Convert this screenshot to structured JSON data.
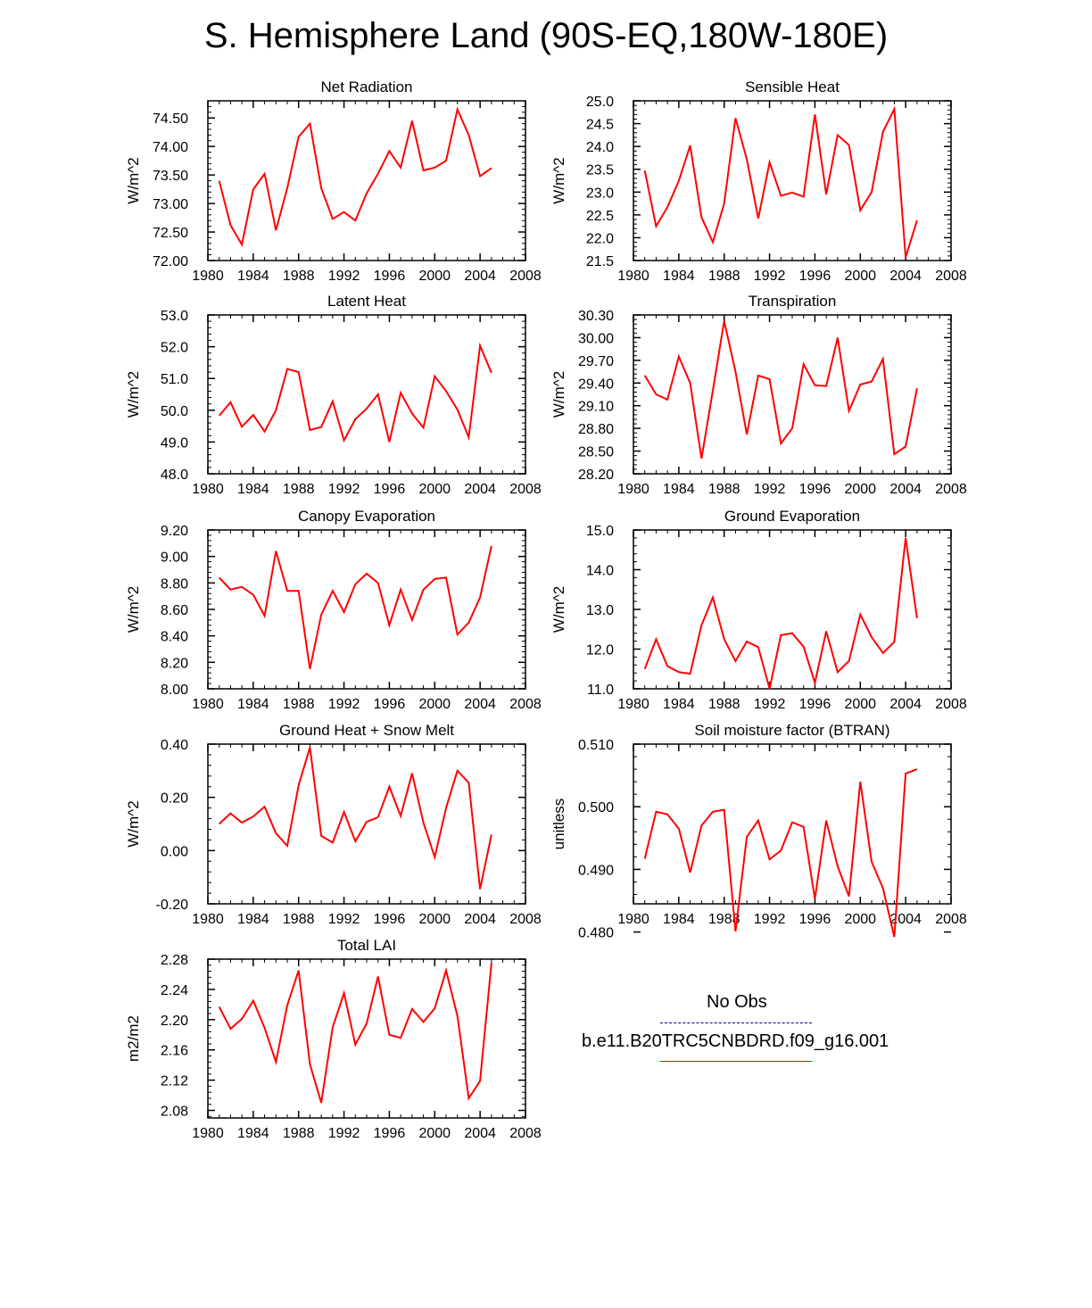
{
  "title": "S. Hemisphere Land (90S-EQ,180W-180E)",
  "colors": {
    "model": "#ff0000",
    "obs": "#00008b",
    "axis": "#000000"
  },
  "legend": {
    "obs_label": "No Obs",
    "model_label": "b.e11.B20TRC5CNBDRD.f09_g16.001"
  },
  "chart_data": [
    {
      "type": "line",
      "title": "Net Radiation",
      "xlabel": "",
      "ylabel": "W/m^2",
      "xlim": [
        1980,
        2008
      ],
      "ylim": [
        72.0,
        74.8
      ],
      "xticks": [
        "1980",
        "1984",
        "1988",
        "1992",
        "1996",
        "2000",
        "2004",
        "2008"
      ],
      "yticks": [
        "72.00",
        "72.50",
        "73.00",
        "73.50",
        "74.00",
        "74.50"
      ],
      "x": [
        1981,
        1982,
        1983,
        1984,
        1985,
        1986,
        1987,
        1988,
        1989,
        1990,
        1991,
        1992,
        1993,
        1994,
        1995,
        1996,
        1997,
        1998,
        1999,
        2000,
        2001,
        2002,
        2003,
        2004,
        2005
      ],
      "series": [
        {
          "name": "b.e11.B20TRC5CNBDRD.f09_g16.001",
          "values": [
            73.4,
            72.62,
            72.28,
            73.25,
            73.52,
            72.53,
            73.27,
            74.17,
            74.4,
            73.27,
            72.73,
            72.85,
            72.7,
            73.18,
            73.52,
            73.92,
            73.63,
            74.45,
            73.58,
            73.63,
            73.75,
            74.65,
            74.2,
            73.48,
            73.62
          ]
        }
      ]
    },
    {
      "type": "line",
      "title": "Sensible Heat",
      "xlabel": "",
      "ylabel": "W/m^2",
      "xlim": [
        1980,
        2008
      ],
      "ylim": [
        21.5,
        25.0
      ],
      "xticks": [
        "1980",
        "1984",
        "1988",
        "1992",
        "1996",
        "2000",
        "2004",
        "2008"
      ],
      "yticks": [
        "21.5",
        "22.0",
        "22.5",
        "23.0",
        "23.5",
        "24.0",
        "24.5",
        "25.0"
      ],
      "x": [
        1981,
        1982,
        1983,
        1984,
        1985,
        1986,
        1987,
        1988,
        1989,
        1990,
        1991,
        1992,
        1993,
        1994,
        1995,
        1996,
        1997,
        1998,
        1999,
        2000,
        2001,
        2002,
        2003,
        2004,
        2005
      ],
      "series": [
        {
          "name": "b.e11.B20TRC5CNBDRD.f09_g16.001",
          "values": [
            23.47,
            22.25,
            22.67,
            23.25,
            24.02,
            22.45,
            21.9,
            22.75,
            24.62,
            23.72,
            22.42,
            23.65,
            22.92,
            22.99,
            22.9,
            24.7,
            22.95,
            24.25,
            24.03,
            22.6,
            23.0,
            24.32,
            24.82,
            21.57,
            22.38
          ]
        }
      ]
    },
    {
      "type": "line",
      "title": "Latent Heat",
      "xlabel": "",
      "ylabel": "W/m^2",
      "xlim": [
        1980,
        2008
      ],
      "ylim": [
        48.0,
        53.0
      ],
      "xticks": [
        "1980",
        "1984",
        "1988",
        "1992",
        "1996",
        "2000",
        "2004",
        "2008"
      ],
      "yticks": [
        "48.0",
        "49.0",
        "50.0",
        "51.0",
        "52.0",
        "53.0"
      ],
      "x": [
        1981,
        1982,
        1983,
        1984,
        1985,
        1986,
        1987,
        1988,
        1989,
        1990,
        1991,
        1992,
        1993,
        1994,
        1995,
        1996,
        1997,
        1998,
        1999,
        2000,
        2001,
        2002,
        2003,
        2004,
        2005
      ],
      "series": [
        {
          "name": "b.e11.B20TRC5CNBDRD.f09_g16.001",
          "values": [
            49.83,
            50.25,
            49.48,
            49.85,
            49.33,
            50.0,
            51.3,
            51.2,
            49.38,
            49.47,
            50.28,
            49.05,
            49.72,
            50.05,
            50.5,
            49.0,
            50.55,
            49.9,
            49.45,
            51.07,
            50.6,
            50.02,
            49.15,
            52.03,
            51.18
          ]
        }
      ]
    },
    {
      "type": "line",
      "title": "Transpiration",
      "xlabel": "",
      "ylabel": "W/m^2",
      "xlim": [
        1980,
        2008
      ],
      "ylim": [
        28.2,
        30.3
      ],
      "xticks": [
        "1980",
        "1984",
        "1988",
        "1992",
        "1996",
        "2000",
        "2004",
        "2008"
      ],
      "yticks": [
        "28.20",
        "28.50",
        "28.80",
        "29.10",
        "29.40",
        "29.70",
        "30.00",
        "30.30"
      ],
      "x": [
        1981,
        1982,
        1983,
        1984,
        1985,
        1986,
        1987,
        1988,
        1989,
        1990,
        1991,
        1992,
        1993,
        1994,
        1995,
        1996,
        1997,
        1998,
        1999,
        2000,
        2001,
        2002,
        2003,
        2004,
        2005
      ],
      "series": [
        {
          "name": "b.e11.B20TRC5CNBDRD.f09_g16.001",
          "values": [
            29.5,
            29.25,
            29.18,
            29.75,
            29.4,
            28.4,
            29.3,
            30.22,
            29.55,
            28.72,
            29.5,
            29.45,
            28.6,
            28.8,
            29.65,
            29.37,
            29.36,
            30.0,
            29.03,
            29.38,
            29.42,
            29.72,
            28.46,
            28.56,
            29.33
          ]
        }
      ]
    },
    {
      "type": "line",
      "title": "Canopy Evaporation",
      "xlabel": "",
      "ylabel": "W/m^2",
      "xlim": [
        1980,
        2008
      ],
      "ylim": [
        8.0,
        9.2
      ],
      "xticks": [
        "1980",
        "1984",
        "1988",
        "1992",
        "1996",
        "2000",
        "2004",
        "2008"
      ],
      "yticks": [
        "8.00",
        "8.20",
        "8.40",
        "8.60",
        "8.80",
        "9.00",
        "9.20"
      ],
      "x": [
        1981,
        1982,
        1983,
        1984,
        1985,
        1986,
        1987,
        1988,
        1989,
        1990,
        1991,
        1992,
        1993,
        1994,
        1995,
        1996,
        1997,
        1998,
        1999,
        2000,
        2001,
        2002,
        2003,
        2004,
        2005
      ],
      "series": [
        {
          "name": "b.e11.B20TRC5CNBDRD.f09_g16.001",
          "values": [
            8.84,
            8.75,
            8.77,
            8.71,
            8.55,
            9.04,
            8.74,
            8.74,
            8.15,
            8.56,
            8.74,
            8.58,
            8.79,
            8.87,
            8.8,
            8.48,
            8.75,
            8.52,
            8.75,
            8.83,
            8.84,
            8.41,
            8.5,
            8.69,
            9.08
          ]
        }
      ]
    },
    {
      "type": "line",
      "title": "Ground Evaporation",
      "xlabel": "",
      "ylabel": "W/m^2",
      "xlim": [
        1980,
        2008
      ],
      "ylim": [
        11.0,
        15.0
      ],
      "xticks": [
        "1980",
        "1984",
        "1988",
        "1992",
        "1996",
        "2000",
        "2004",
        "2008"
      ],
      "yticks": [
        "11.0",
        "12.0",
        "13.0",
        "14.0",
        "15.0"
      ],
      "x": [
        1981,
        1982,
        1983,
        1984,
        1985,
        1986,
        1987,
        1988,
        1989,
        1990,
        1991,
        1992,
        1993,
        1994,
        1995,
        1996,
        1997,
        1998,
        1999,
        2000,
        2001,
        2002,
        2003,
        2004,
        2005
      ],
      "series": [
        {
          "name": "b.e11.B20TRC5CNBDRD.f09_g16.001",
          "values": [
            11.5,
            12.25,
            11.57,
            11.42,
            11.38,
            12.6,
            13.3,
            12.25,
            11.7,
            12.19,
            12.05,
            11.0,
            12.35,
            12.4,
            12.06,
            11.15,
            12.45,
            11.42,
            11.7,
            12.87,
            12.3,
            11.9,
            12.18,
            14.8,
            12.78
          ]
        }
      ]
    },
    {
      "type": "line",
      "title": "Ground Heat + Snow Melt",
      "xlabel": "",
      "ylabel": "W/m^2",
      "xlim": [
        1980,
        2008
      ],
      "ylim": [
        -0.2,
        0.4
      ],
      "xticks": [
        "1980",
        "1984",
        "1988",
        "1992",
        "1996",
        "2000",
        "2004",
        "2008"
      ],
      "yticks": [
        "-0.20",
        "0.00",
        "0.20",
        "0.40"
      ],
      "x": [
        1981,
        1982,
        1983,
        1984,
        1985,
        1986,
        1987,
        1988,
        1989,
        1990,
        1991,
        1992,
        1993,
        1994,
        1995,
        1996,
        1997,
        1998,
        1999,
        2000,
        2001,
        2002,
        2003,
        2004,
        2005
      ],
      "series": [
        {
          "name": "b.e11.B20TRC5CNBDRD.f09_g16.001",
          "values": [
            0.1,
            0.14,
            0.105,
            0.128,
            0.165,
            0.065,
            0.018,
            0.245,
            0.388,
            0.055,
            0.03,
            0.145,
            0.035,
            0.108,
            0.125,
            0.24,
            0.13,
            0.29,
            0.105,
            -0.025,
            0.16,
            0.3,
            0.255,
            -0.145,
            0.06
          ]
        }
      ]
    },
    {
      "type": "line",
      "title": "Soil moisture factor (BTRAN)",
      "xlabel": "",
      "ylabel": "unitless",
      "xlim": [
        1980,
        2008
      ],
      "ylim": [
        0.4845,
        0.51
      ],
      "xticks": [
        "1980",
        "1984",
        "1988",
        "1992",
        "1996",
        "2000",
        "2004",
        "2008"
      ],
      "yticks": [
        "0.480",
        "0.490",
        "0.500",
        "0.510"
      ],
      "x": [
        1981,
        1982,
        1983,
        1984,
        1985,
        1986,
        1987,
        1988,
        1989,
        1990,
        1991,
        1992,
        1993,
        1994,
        1995,
        1996,
        1997,
        1998,
        1999,
        2000,
        2001,
        2002,
        2003,
        2004,
        2005
      ],
      "series": [
        {
          "name": "b.e11.B20TRC5CNBDRD.f09_g16.001",
          "values": [
            0.4917,
            0.4992,
            0.4988,
            0.4965,
            0.4895,
            0.497,
            0.4992,
            0.4995,
            0.4801,
            0.4952,
            0.4978,
            0.4916,
            0.493,
            0.4975,
            0.4968,
            0.4853,
            0.4978,
            0.4905,
            0.4857,
            0.504,
            0.4912,
            0.487,
            0.4792,
            0.5053,
            0.506
          ]
        }
      ]
    },
    {
      "type": "line",
      "title": "Total LAI",
      "xlabel": "",
      "ylabel": "m2/m2",
      "xlim": [
        1980,
        2008
      ],
      "ylim": [
        2.07,
        2.28
      ],
      "xticks": [
        "1980",
        "1984",
        "1988",
        "1992",
        "1996",
        "2000",
        "2004",
        "2008"
      ],
      "yticks": [
        "2.08",
        "2.12",
        "2.16",
        "2.20",
        "2.24",
        "2.28"
      ],
      "x": [
        1981,
        1982,
        1983,
        1984,
        1985,
        1986,
        1987,
        1988,
        1989,
        1990,
        1991,
        1992,
        1993,
        1994,
        1995,
        1996,
        1997,
        1998,
        1999,
        2000,
        2001,
        2002,
        2003,
        2004,
        2005
      ],
      "series": [
        {
          "name": "b.e11.B20TRC5CNBDRD.f09_g16.001",
          "values": [
            2.217,
            2.188,
            2.201,
            2.225,
            2.189,
            2.144,
            2.219,
            2.265,
            2.141,
            2.09,
            2.19,
            2.235,
            2.167,
            2.195,
            2.257,
            2.18,
            2.176,
            2.214,
            2.197,
            2.215,
            2.265,
            2.205,
            2.096,
            2.119,
            2.275
          ]
        }
      ]
    }
  ]
}
